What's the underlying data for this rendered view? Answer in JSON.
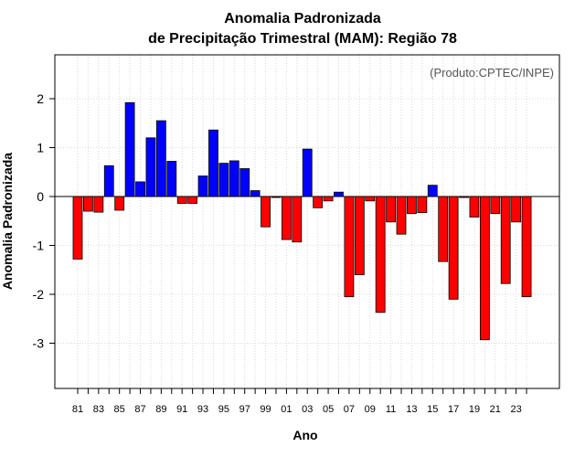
{
  "colors": {
    "positive": "#0000ff",
    "negative": "#ff0000",
    "grid": "#d9d9d9",
    "annotation": "#555555"
  },
  "chart_data": {
    "type": "bar",
    "title": "Anomalia Padronizada",
    "subtitle": "de Precipitação Trimestral (MAM): Região 78",
    "xlabel": "Ano",
    "ylabel": "Anomalia Padronizada",
    "annotation": "(Produto:CPTEC/INPE)",
    "ylim": [
      -3.9,
      2.9
    ],
    "yticks": [
      -3,
      -2,
      -1,
      0,
      1,
      2
    ],
    "ytick_labels": [
      "-3",
      "-2",
      "-1",
      "0",
      "1",
      "2"
    ],
    "grid": true,
    "categories": [
      "81",
      "82",
      "83",
      "84",
      "85",
      "86",
      "87",
      "88",
      "89",
      "90",
      "91",
      "92",
      "93",
      "94",
      "95",
      "96",
      "97",
      "98",
      "99",
      "00",
      "01",
      "02",
      "03",
      "04",
      "05",
      "06",
      "07",
      "08",
      "09",
      "10",
      "11",
      "12",
      "13",
      "14",
      "15",
      "16",
      "17",
      "18",
      "19",
      "20",
      "21",
      "22",
      "23",
      "24"
    ],
    "xtick_labels": [
      "81",
      "83",
      "85",
      "87",
      "89",
      "91",
      "93",
      "95",
      "97",
      "99",
      "01",
      "03",
      "05",
      "07",
      "09",
      "11",
      "13",
      "15",
      "17",
      "19",
      "21",
      "23"
    ],
    "values": [
      -1.28,
      -0.3,
      -0.32,
      0.63,
      -0.28,
      1.92,
      0.3,
      1.2,
      1.55,
      0.72,
      -0.14,
      -0.14,
      0.42,
      1.36,
      0.68,
      0.73,
      0.57,
      0.12,
      -0.62,
      -0.02,
      -0.88,
      -0.93,
      0.97,
      -0.23,
      -0.09,
      0.09,
      -2.05,
      -1.6,
      -0.09,
      -2.37,
      -0.52,
      -0.77,
      -0.35,
      -0.33,
      0.23,
      -1.33,
      -2.1,
      -0.02,
      -0.42,
      -2.93,
      -0.35,
      -1.78,
      -0.52,
      -2.05
    ]
  }
}
